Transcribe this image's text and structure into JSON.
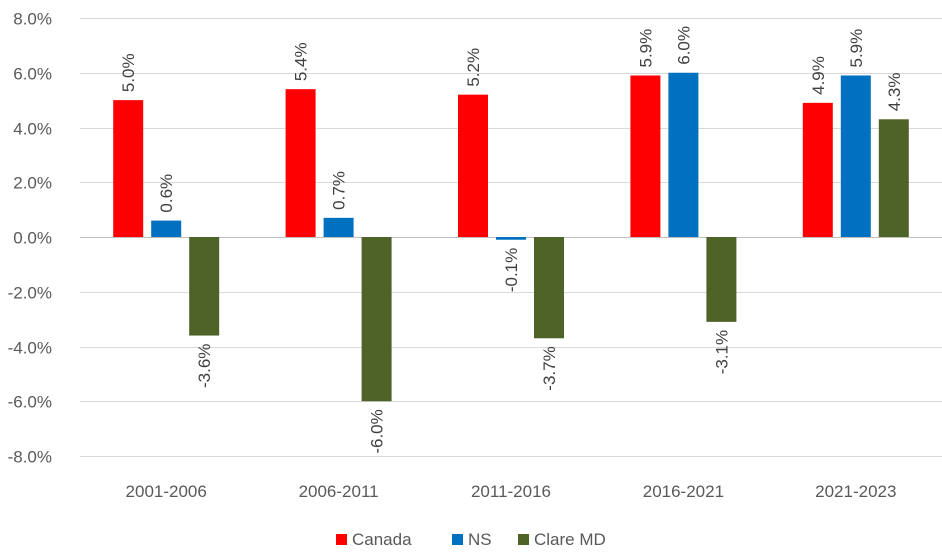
{
  "chart_data": {
    "type": "bar",
    "title": "",
    "xlabel": "",
    "ylabel": "",
    "categories": [
      "2001-2006",
      "2006-2011",
      "2011-2016",
      "2016-2021",
      "2021-2023"
    ],
    "series": [
      {
        "name": "Canada",
        "color": "#ff0000",
        "values": [
          5.0,
          5.4,
          5.2,
          5.9,
          4.9
        ]
      },
      {
        "name": "NS",
        "color": "#0070c0",
        "values": [
          0.6,
          0.7,
          -0.1,
          6.0,
          5.9
        ]
      },
      {
        "name": "Clare MD",
        "color": "#4f6228",
        "values": [
          -3.6,
          -6.0,
          -3.7,
          -3.1,
          4.3
        ]
      }
    ],
    "data_labels": [
      [
        "5.0%",
        "5.4%",
        "5.2%",
        "5.9%",
        "4.9%"
      ],
      [
        "0.6%",
        "0.7%",
        "-0.1%",
        "6.0%",
        "5.9%"
      ],
      [
        "-3.6%",
        "-6.0%",
        "-3.7%",
        "-3.1%",
        "4.3%"
      ]
    ],
    "ylim": [
      -8,
      8
    ],
    "yticks": [
      8,
      6,
      4,
      2,
      0,
      -2,
      -4,
      -6,
      -8
    ],
    "ytick_labels": [
      "8.0%",
      "6.0%",
      "4.0%",
      "2.0%",
      "0.0%",
      "-2.0%",
      "-4.0%",
      "-6.0%",
      "-8.0%"
    ],
    "grid": true,
    "legend_position": "bottom"
  }
}
